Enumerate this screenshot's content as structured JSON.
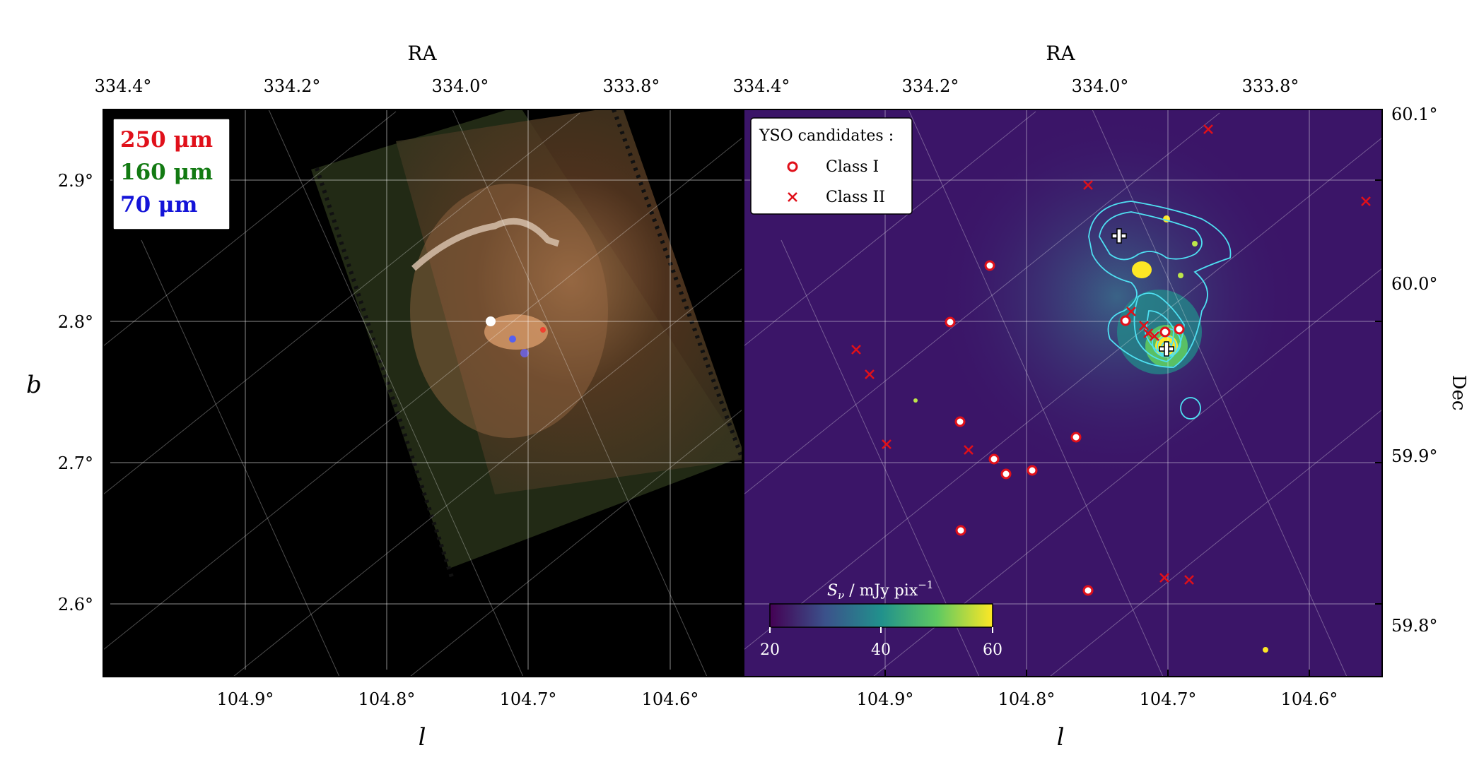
{
  "left_panel": {
    "top_axis_label": "RA",
    "top_ticks": [
      "334.4°",
      "334.2°",
      "334.0°",
      "333.8°"
    ],
    "left_ticks": [
      "2.9°",
      "2.8°",
      "2.7°",
      "2.6°"
    ],
    "bottom_ticks": [
      "104.9°",
      "104.8°",
      "104.7°",
      "104.6°"
    ],
    "xlabel": "l",
    "ylabel": "b",
    "legend": [
      {
        "text": "250 μm",
        "color": "#e0101a"
      },
      {
        "text": "160 μm",
        "color": "#127a12"
      },
      {
        "text": "70 μm",
        "color": "#1414d8"
      }
    ]
  },
  "right_panel": {
    "top_axis_label": "RA",
    "top_ticks": [
      "334.4°",
      "334.2°",
      "334.0°",
      "333.8°"
    ],
    "right_ticks": [
      "60.1°",
      "60.0°",
      "59.9°",
      "59.8°"
    ],
    "bottom_ticks": [
      "104.9°",
      "104.8°",
      "104.7°",
      "104.6°"
    ],
    "xlabel": "l",
    "ylabel": "Dec",
    "legend": {
      "title": "YSO candidates :",
      "class1": "Class I",
      "class2": "Class II"
    },
    "colorbar": {
      "label": "S",
      "label_sub": "ν",
      "label_rest": " / mJy pix",
      "label_sup": "−1",
      "ticks": [
        "20",
        "40",
        "60"
      ],
      "range": [
        20,
        60
      ]
    },
    "colors": {
      "background": "#3b1568",
      "contour": "#4fe0f2",
      "marker": "#e0101a"
    }
  }
}
